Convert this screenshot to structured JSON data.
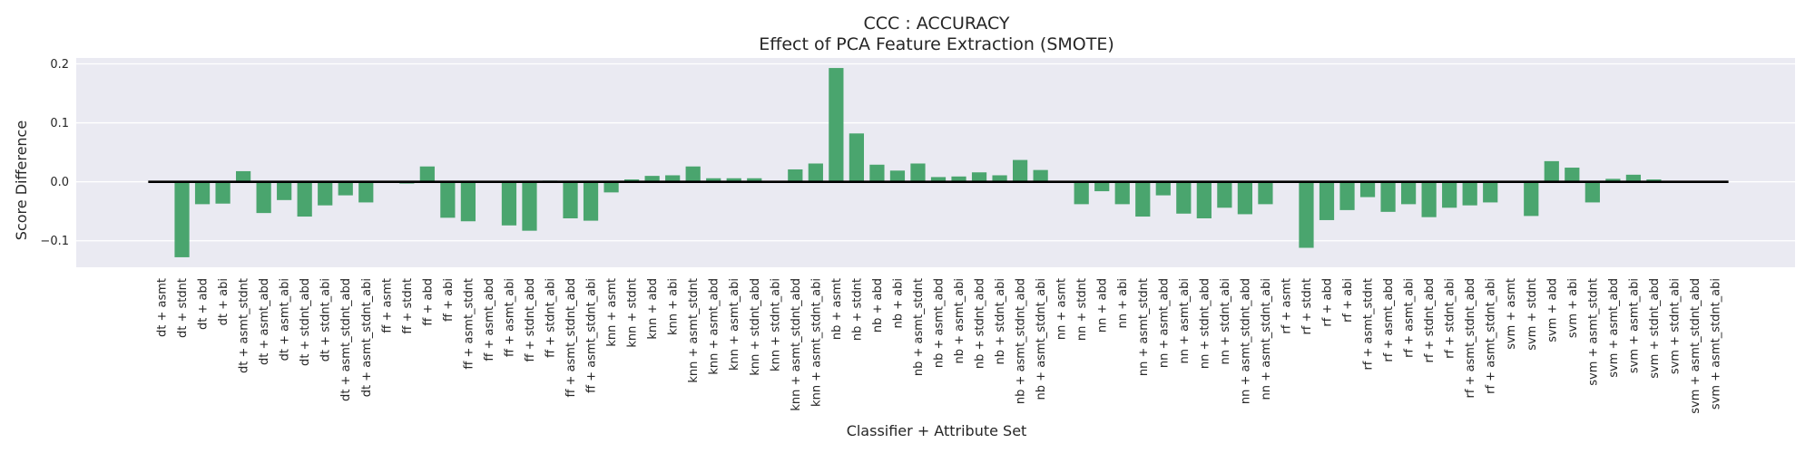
{
  "chart_data": {
    "type": "bar",
    "title": "CCC : ACCURACY",
    "subtitle": "Effect of PCA Feature Extraction (SMOTE)",
    "xlabel": "Classifier + Attribute Set",
    "ylabel": "Score Difference",
    "ylim": [
      -0.145,
      0.21
    ],
    "yticks": [
      -0.1,
      0.0,
      0.1,
      0.2
    ],
    "ytick_labels": [
      "−0.1",
      "0.0",
      "0.1",
      "0.2"
    ],
    "grid": true,
    "legend": "none",
    "zero_line": true,
    "colors": {
      "bar": "#4aa56e",
      "plot_background": "#eaeaf2",
      "grid": "#ffffff",
      "zero_line": "#000000"
    },
    "categories": [
      "dt + asmt",
      "dt + stdnt",
      "dt + abd",
      "dt + abi",
      "dt + asmt_stdnt",
      "dt + asmt_abd",
      "dt + asmt_abi",
      "dt + stdnt_abd",
      "dt + stdnt_abi",
      "dt + asmt_stdnt_abd",
      "dt + asmt_stdnt_abi",
      "ff + asmt",
      "ff + stdnt",
      "ff + abd",
      "ff + abi",
      "ff + asmt_stdnt",
      "ff + asmt_abd",
      "ff + asmt_abi",
      "ff + stdnt_abd",
      "ff + stdnt_abi",
      "ff + asmt_stdnt_abd",
      "ff + asmt_stdnt_abi",
      "knn + asmt",
      "knn + stdnt",
      "knn + abd",
      "knn + abi",
      "knn + asmt_stdnt",
      "knn + asmt_abd",
      "knn + asmt_abi",
      "knn + stdnt_abd",
      "knn + stdnt_abi",
      "knn + asmt_stdnt_abd",
      "knn + asmt_stdnt_abi",
      "nb + asmt",
      "nb + stdnt",
      "nb + abd",
      "nb + abi",
      "nb + asmt_stdnt",
      "nb + asmt_abd",
      "nb + asmt_abi",
      "nb + stdnt_abd",
      "nb + stdnt_abi",
      "nb + asmt_stdnt_abd",
      "nb + asmt_stdnt_abi",
      "nn + asmt",
      "nn + stdnt",
      "nn + abd",
      "nn + abi",
      "nn + asmt_stdnt",
      "nn + asmt_abd",
      "nn + asmt_abi",
      "nn + stdnt_abd",
      "nn + stdnt_abi",
      "nn + asmt_stdnt_abd",
      "nn + asmt_stdnt_abi",
      "rf + asmt",
      "rf + stdnt",
      "rf + abd",
      "rf + abi",
      "rf + asmt_stdnt",
      "rf + asmt_abd",
      "rf + asmt_abi",
      "rf + stdnt_abd",
      "rf + stdnt_abi",
      "rf + asmt_stdnt_abd",
      "rf + asmt_stdnt_abi",
      "svm + asmt",
      "svm + stdnt",
      "svm + abd",
      "svm + abi",
      "svm + asmt_stdnt",
      "svm + asmt_abd",
      "svm + asmt_abi",
      "svm + stdnt_abd",
      "svm + stdnt_abi",
      "svm + asmt_stdnt_abd",
      "svm + asmt_stdnt_abi"
    ],
    "values": [
      0.0,
      -0.128,
      -0.038,
      -0.037,
      0.018,
      -0.053,
      -0.031,
      -0.059,
      -0.04,
      -0.023,
      -0.035,
      0.0,
      -0.003,
      0.026,
      -0.061,
      -0.067,
      0.0,
      -0.074,
      -0.083,
      0.002,
      -0.062,
      -0.066,
      -0.018,
      0.004,
      0.01,
      0.011,
      0.026,
      0.006,
      0.006,
      0.006,
      0.0,
      0.021,
      0.031,
      0.193,
      0.082,
      0.029,
      0.019,
      0.031,
      0.008,
      0.009,
      0.016,
      0.011,
      0.037,
      0.02,
      0.0,
      -0.038,
      -0.016,
      -0.038,
      -0.059,
      -0.023,
      -0.054,
      -0.062,
      -0.044,
      -0.055,
      -0.038,
      0.0,
      -0.112,
      -0.065,
      -0.048,
      -0.026,
      -0.051,
      -0.038,
      -0.06,
      -0.044,
      -0.04,
      -0.035,
      0.0,
      -0.058,
      0.035,
      0.024,
      -0.035,
      0.005,
      0.012,
      0.004,
      0.0,
      -0.002,
      0.0
    ]
  }
}
